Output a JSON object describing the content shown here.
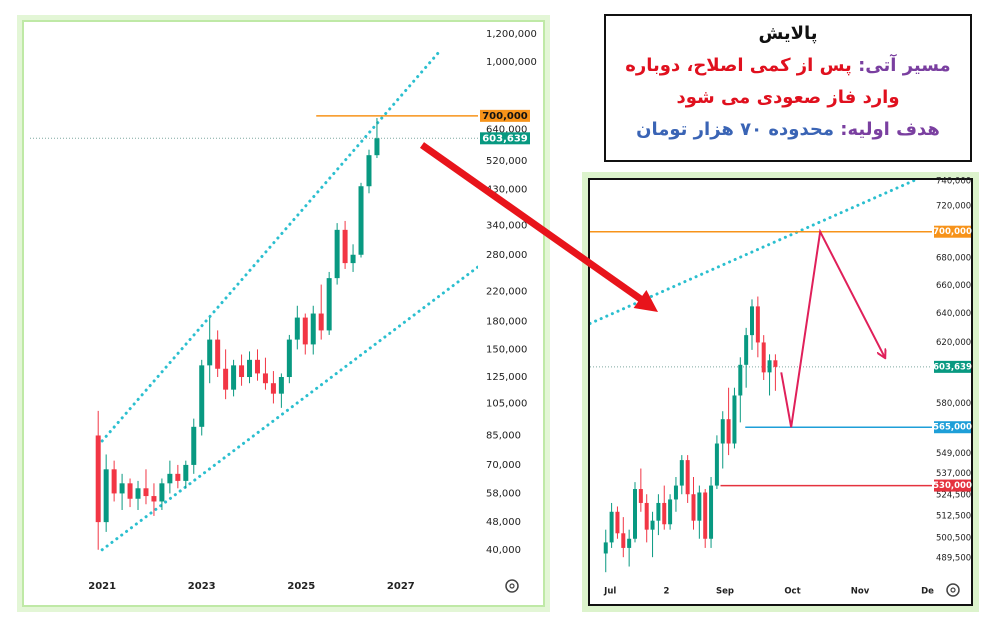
{
  "annotation": {
    "title": "پالایش",
    "line1_label": "مسیر آتی:",
    "line1_text": "پس از کمی اصلاح، دوباره",
    "line2_text": "وارد فاز صعودی می شود",
    "line3_label": "هدف اولیه:",
    "line3_text": "محدوده ۷۰ هزار تومان"
  },
  "chart_data": [
    {
      "type": "candlestick",
      "log_scale": true,
      "grid": false,
      "up_color": "#089981",
      "down_color": "#f23645",
      "x": [
        2020.92,
        2021.08,
        2021.24,
        2021.4,
        2021.56,
        2021.72,
        2021.88,
        2022.04,
        2022.2,
        2022.36,
        2022.52,
        2022.68,
        2022.84,
        2023.0,
        2023.16,
        2023.32,
        2023.48,
        2023.64,
        2023.8,
        2023.96,
        2024.12,
        2024.28,
        2024.44,
        2024.6,
        2024.76,
        2024.92,
        2025.08,
        2025.24,
        2025.4,
        2025.56,
        2025.72,
        2025.88,
        2026.04,
        2026.2,
        2026.36,
        2026.52
      ],
      "open": [
        85000,
        48000,
        68000,
        58000,
        62000,
        56000,
        60000,
        57000,
        55000,
        62000,
        66000,
        63000,
        70000,
        90000,
        135000,
        160000,
        132000,
        115000,
        135000,
        125000,
        140000,
        128000,
        120000,
        112000,
        125000,
        160000,
        185000,
        155000,
        190000,
        170000,
        240000,
        330000,
        265000,
        280000,
        440000,
        540000
      ],
      "high": [
        100000,
        75000,
        72000,
        66000,
        64000,
        63000,
        68000,
        62000,
        64000,
        72000,
        70000,
        72000,
        95000,
        140000,
        185000,
        170000,
        150000,
        140000,
        145000,
        148000,
        150000,
        142000,
        130000,
        128000,
        165000,
        200000,
        190000,
        200000,
        230000,
        250000,
        345000,
        350000,
        300000,
        450000,
        560000,
        690000
      ],
      "low": [
        40000,
        45000,
        55000,
        52000,
        53000,
        52000,
        54000,
        50000,
        52000,
        58000,
        60000,
        60000,
        66000,
        85000,
        120000,
        125000,
        108000,
        110000,
        118000,
        120000,
        122000,
        115000,
        105000,
        102000,
        120000,
        150000,
        145000,
        145000,
        160000,
        165000,
        230000,
        255000,
        250000,
        275000,
        420000,
        530000
      ],
      "close": [
        48000,
        68000,
        58000,
        62000,
        56000,
        60000,
        57000,
        55000,
        62000,
        66000,
        63000,
        70000,
        90000,
        135000,
        160000,
        132000,
        115000,
        135000,
        125000,
        140000,
        128000,
        120000,
        112000,
        125000,
        160000,
        185000,
        155000,
        190000,
        170000,
        240000,
        330000,
        265000,
        280000,
        440000,
        540000,
        603639
      ],
      "xlim": [
        2019.55,
        2028.55
      ],
      "xticks": [
        2021,
        2023,
        2025,
        2027
      ],
      "ylim": [
        35000,
        1300000
      ],
      "yticks": [
        {
          "value": 1200000,
          "label": "1,200,000"
        },
        {
          "value": 1000000,
          "label": "1,000,000"
        },
        {
          "value": 640000,
          "label": "640,000"
        },
        {
          "value": 520000,
          "label": "520,000"
        },
        {
          "value": 430000,
          "label": "430,000"
        },
        {
          "value": 340000,
          "label": "340,000"
        },
        {
          "value": 280000,
          "label": "280,000"
        },
        {
          "value": 220000,
          "label": "220,000"
        },
        {
          "value": 180000,
          "label": "180,000"
        },
        {
          "value": 150000,
          "label": "150,000"
        },
        {
          "value": 125000,
          "label": "125,000"
        },
        {
          "value": 105000,
          "label": "105,000"
        },
        {
          "value": 85000,
          "label": "85,000"
        },
        {
          "value": 70000,
          "label": "70,000"
        },
        {
          "value": 58000,
          "label": "58,000"
        },
        {
          "value": 48000,
          "label": "48,000"
        },
        {
          "value": 40000,
          "label": "40,000"
        }
      ],
      "channel_color": "#2bbfcf",
      "channels": [
        {
          "x": [
            2021,
            2027.78
          ],
          "values": [
            82000,
            1072000
          ]
        },
        {
          "x": [
            2021,
            2028.59
          ],
          "values": [
            40000,
            261000
          ]
        }
      ],
      "hlines": [
        {
          "value": 700000,
          "label": "700,000",
          "color": "#f7931a",
          "from": 2025.3
        }
      ],
      "last_price": {
        "value": 603639,
        "label": "603,639",
        "color": "#089981"
      }
    },
    {
      "type": "candlestick",
      "log_scale": true,
      "grid": false,
      "up_color": "#089981",
      "down_color": "#f23645",
      "x": [
        -2,
        0.6,
        3.2,
        5.8,
        8.4,
        11,
        13.6,
        16.2,
        18.8,
        21.4,
        24,
        26.6,
        29.2,
        31.8,
        34.4,
        37,
        39.6,
        42.2,
        44.8,
        47.4,
        50,
        52.6,
        55.2,
        57.8,
        60.4,
        63,
        65.6,
        68.2,
        70.8,
        73.4
      ],
      "open": [
        492000,
        498000,
        515000,
        503000,
        495000,
        500000,
        528000,
        520000,
        505000,
        510000,
        520000,
        508000,
        522000,
        530000,
        545000,
        525000,
        510000,
        526000,
        500000,
        530000,
        555000,
        570000,
        555000,
        585000,
        605000,
        625000,
        645000,
        620000,
        600000,
        608000
      ],
      "high": [
        505000,
        520000,
        518000,
        512000,
        505000,
        532000,
        540000,
        525000,
        515000,
        525000,
        530000,
        525000,
        535000,
        548000,
        548000,
        535000,
        530000,
        528000,
        535000,
        560000,
        575000,
        590000,
        590000,
        610000,
        630000,
        650000,
        652000,
        625000,
        612000,
        612000
      ],
      "low": [
        482000,
        495000,
        500000,
        490000,
        485000,
        498000,
        515000,
        498000,
        490000,
        502000,
        505000,
        505000,
        515000,
        525000,
        520000,
        505000,
        500000,
        495000,
        495000,
        528000,
        540000,
        548000,
        552000,
        568000,
        590000,
        615000,
        610000,
        595000,
        585000,
        588000
      ],
      "close": [
        498000,
        515000,
        503000,
        495000,
        500000,
        528000,
        520000,
        505000,
        510000,
        520000,
        508000,
        522000,
        530000,
        545000,
        525000,
        510000,
        526000,
        500000,
        530000,
        555000,
        570000,
        555000,
        585000,
        605000,
        625000,
        645000,
        620000,
        600000,
        608000,
        603639
      ],
      "xlim": [
        -9,
        143
      ],
      "xticks": [
        {
          "value": 0,
          "label": "Jul"
        },
        {
          "value": 25,
          "label": "2"
        },
        {
          "value": 51,
          "label": "Sep"
        },
        {
          "value": 81,
          "label": "Oct"
        },
        {
          "value": 111,
          "label": "Nov"
        },
        {
          "value": 141,
          "label": "De"
        }
      ],
      "ylim": [
        480000,
        740000
      ],
      "yticks": [
        {
          "value": 740000,
          "label": "740,000"
        },
        {
          "value": 720000,
          "label": "720,000"
        },
        {
          "value": 680000,
          "label": "680,000"
        },
        {
          "value": 660000,
          "label": "660,000"
        },
        {
          "value": 640000,
          "label": "640,000"
        },
        {
          "value": 620000,
          "label": "620,000"
        },
        {
          "value": 580000,
          "label": "580,000"
        },
        {
          "value": 549000,
          "label": "549,000"
        },
        {
          "value": 537000,
          "label": "537,000"
        },
        {
          "value": 524500,
          "label": "524,500"
        },
        {
          "value": 512500,
          "label": "512,500"
        },
        {
          "value": 500500,
          "label": "500,500"
        },
        {
          "value": 489500,
          "label": "489,500"
        }
      ],
      "channel_color": "#2bbfcf",
      "channels": [
        {
          "x": [
            -9,
            135.5
          ],
          "values": [
            633000,
            740800
          ]
        }
      ],
      "hlines": [
        {
          "value": 700000,
          "label": "700,000",
          "color": "#f7931a",
          "from": -9
        },
        {
          "value": 565000,
          "label": "565,000",
          "color": "#1e9fd8",
          "from": 60
        },
        {
          "value": 530000,
          "label": "530,000",
          "color": "#e5323e",
          "from": 49
        }
      ],
      "last_price": {
        "value": 603639,
        "label": "603,639",
        "color": "#089981"
      },
      "projection": {
        "x": [
          76,
          80.4,
          93.3,
          122
        ],
        "values": [
          600000,
          565000,
          700000,
          610000
        ],
        "color": "#e0205a"
      }
    }
  ]
}
